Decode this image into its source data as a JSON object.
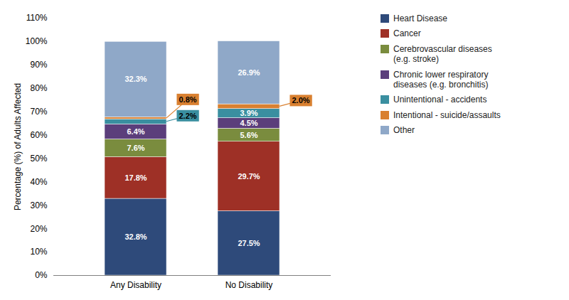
{
  "chart_data": {
    "type": "bar",
    "stacked": true,
    "categories": [
      "Any Disability",
      "No Disability"
    ],
    "series": [
      {
        "name": "Heart Disease",
        "color": "#2E4A7A",
        "values": [
          32.8,
          27.5
        ],
        "value_labels": [
          "32.8%",
          "27.5%"
        ]
      },
      {
        "name": "Cancer",
        "color": "#9E3026",
        "values": [
          17.8,
          29.7
        ],
        "value_labels": [
          "17.8%",
          "29.7%"
        ]
      },
      {
        "name": "Cerebrovascular diseases\n(e.g. stroke)",
        "color": "#7A8C3E",
        "values": [
          7.6,
          5.6
        ],
        "value_labels": [
          "7.6%",
          "5.6%"
        ]
      },
      {
        "name": "Chronic lower respiratory\ndiseases (e.g. bronchitis)",
        "color": "#5B3E7B",
        "values": [
          6.4,
          4.5
        ],
        "value_labels": [
          "6.4%",
          "4.5%"
        ]
      },
      {
        "name": "Unintentional - accidents",
        "color": "#3A8FA0",
        "values": [
          2.2,
          3.9
        ],
        "value_labels": [
          "2.2%",
          "3.9%"
        ]
      },
      {
        "name": "Intentional - suicide/assaults",
        "color": "#D98030",
        "values": [
          0.8,
          2.0
        ],
        "value_labels": [
          "0.8%",
          "2.0%"
        ]
      },
      {
        "name": "Other",
        "color": "#8FA8C8",
        "values": [
          32.3,
          26.9
        ],
        "value_labels": [
          "32.3%",
          "26.9%"
        ]
      }
    ],
    "ylabel": "Percentage (%) of Adults Affected",
    "ylim": [
      0,
      110
    ],
    "yticks": [
      {
        "value": 0,
        "label": "0%"
      },
      {
        "value": 10,
        "label": "10%"
      },
      {
        "value": 20,
        "label": "20%"
      },
      {
        "value": 30,
        "label": "30%"
      },
      {
        "value": 40,
        "label": "40%"
      },
      {
        "value": 50,
        "label": "50%"
      },
      {
        "value": 60,
        "label": "60%"
      },
      {
        "value": 70,
        "label": "70%"
      },
      {
        "value": 80,
        "label": "80%"
      },
      {
        "value": 90,
        "label": "90%"
      },
      {
        "value": 100,
        "label": "100%"
      },
      {
        "value": 110,
        "label": "110%"
      }
    ],
    "grid": false,
    "legend": "right",
    "data_labels": true
  }
}
